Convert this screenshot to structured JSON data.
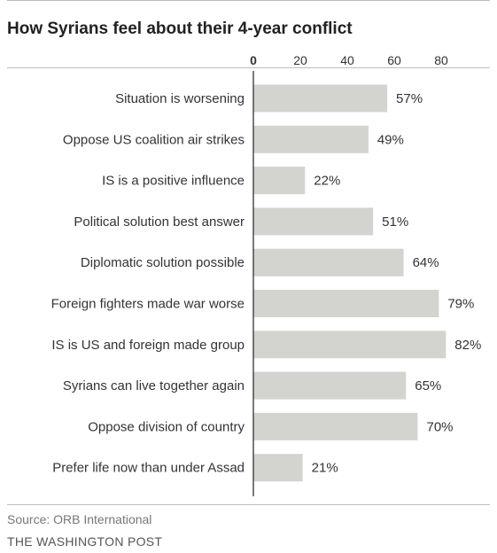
{
  "chart_data": {
    "type": "bar",
    "orientation": "horizontal",
    "title": "How Syrians feel about their 4-year conflict",
    "categories": [
      "Situation is worsening",
      "Oppose US coalition air strikes",
      "IS is a positive influence",
      "Political solution best answer",
      "Diplomatic solution possible",
      "Foreign fighters made war worse",
      "IS is US and foreign made group",
      "Syrians can live together again",
      "Oppose division of country",
      "Prefer life now than under Assad"
    ],
    "values": [
      57,
      49,
      22,
      51,
      64,
      79,
      82,
      65,
      70,
      21
    ],
    "value_labels": [
      "57%",
      "49%",
      "22%",
      "51%",
      "64%",
      "79%",
      "82%",
      "65%",
      "70%",
      "21%"
    ],
    "xticks": [
      0,
      20,
      40,
      60,
      80
    ],
    "xlim": [
      0,
      100
    ],
    "axis_position": "top",
    "grid": false,
    "bar_color": "#d3d3d0"
  },
  "footer": {
    "source": "Source: ORB International",
    "credit": "THE WASHINGTON POST"
  }
}
